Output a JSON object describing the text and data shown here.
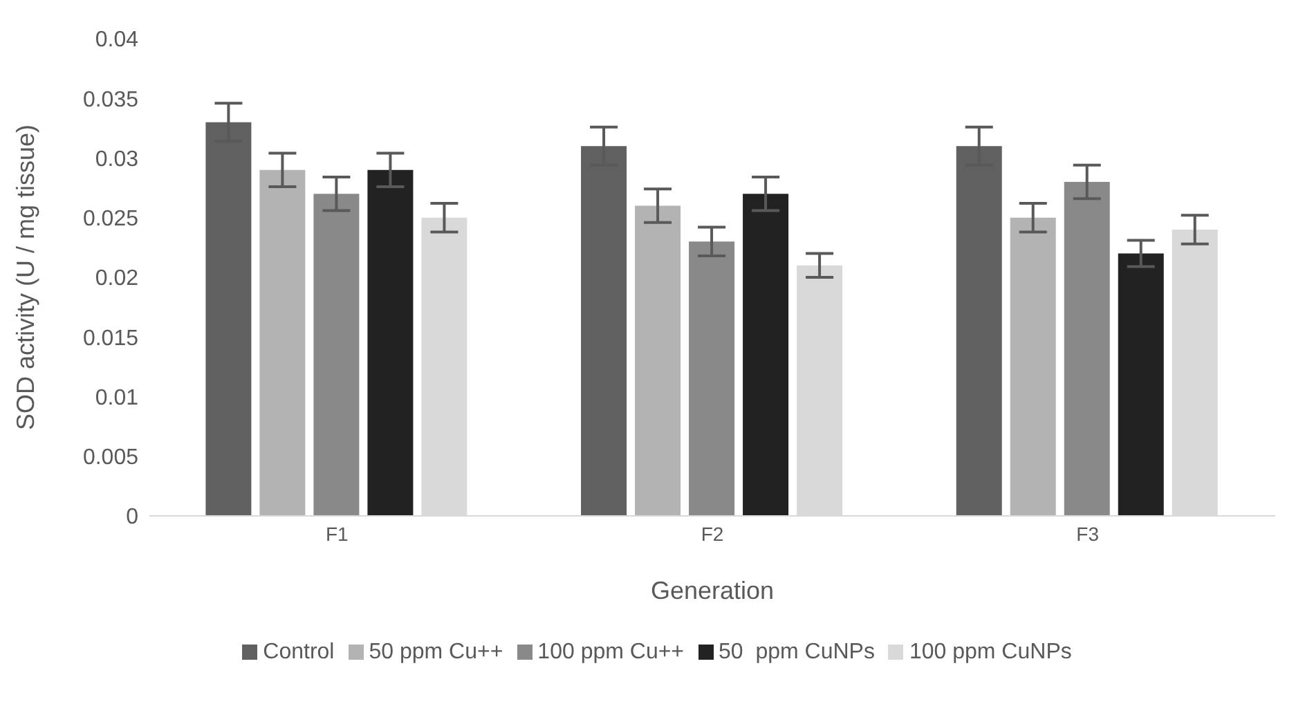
{
  "chart_data": {
    "type": "bar",
    "xlabel": "Generation",
    "ylabel": "SOD activity (U / mg tissue)",
    "categories": [
      "F1",
      "F2",
      "F3"
    ],
    "series": [
      {
        "name": "Control",
        "color": "#606060",
        "values": [
          0.033,
          0.031,
          0.031
        ],
        "errors": [
          0.0016,
          0.0016,
          0.0016
        ]
      },
      {
        "name": "50 ppm Cu++",
        "color": "#b3b3b3",
        "values": [
          0.029,
          0.026,
          0.025
        ],
        "errors": [
          0.0014,
          0.0014,
          0.0012
        ]
      },
      {
        "name": "100 ppm Cu++",
        "color": "#898989",
        "values": [
          0.027,
          0.023,
          0.028
        ],
        "errors": [
          0.0014,
          0.0012,
          0.0014
        ]
      },
      {
        "name": "50  ppm CuNPs",
        "color": "#222222",
        "values": [
          0.029,
          0.027,
          0.022
        ],
        "errors": [
          0.0014,
          0.0014,
          0.0011
        ]
      },
      {
        "name": "100 ppm CuNPs",
        "color": "#d9d9d9",
        "values": [
          0.025,
          0.021,
          0.024
        ],
        "errors": [
          0.0012,
          0.001,
          0.0012
        ]
      }
    ],
    "ylim": [
      0,
      0.04
    ],
    "yticks": [
      0,
      0.005,
      0.01,
      0.015,
      0.02,
      0.025,
      0.03,
      0.035,
      0.04
    ],
    "grid": false,
    "legend": "bottom"
  }
}
